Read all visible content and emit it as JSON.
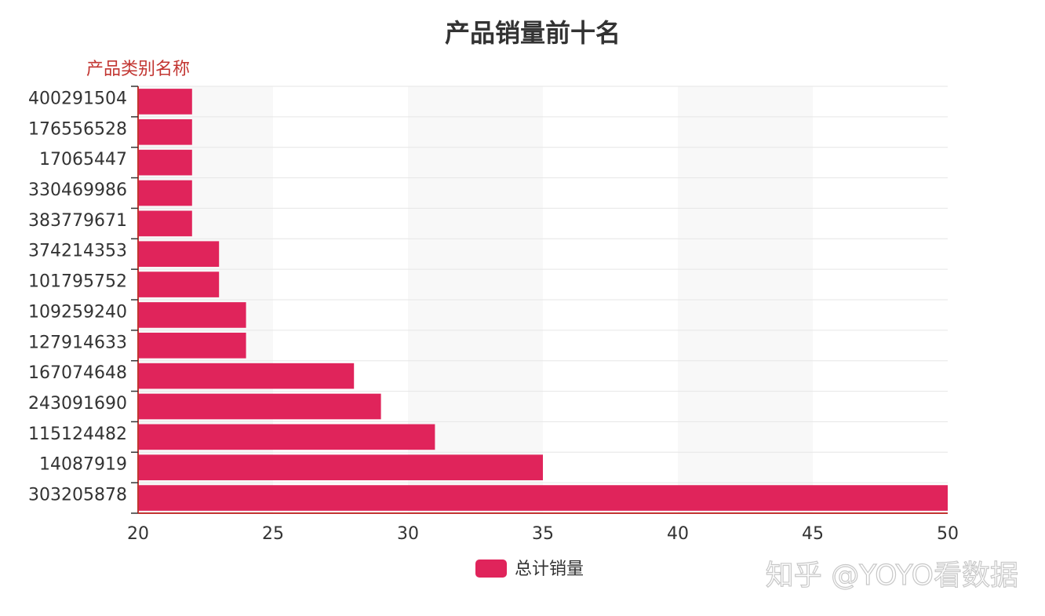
{
  "chart_data": {
    "type": "bar",
    "orientation": "horizontal",
    "title": "产品销量前十名",
    "ylabel": "产品类别名称",
    "xlabel": "",
    "categories": [
      "303205878",
      "14087919",
      "115124482",
      "243091690",
      "167074648",
      "127914633",
      "109259240",
      "101795752",
      "374214353",
      "383779671",
      "330469986",
      "17065447",
      "176556528",
      "400291504"
    ],
    "series": [
      {
        "name": "总计销量",
        "color": "#e0245b",
        "values": [
          50,
          35,
          31,
          29,
          28,
          24,
          24,
          23,
          23,
          22,
          22,
          22,
          22,
          22
        ]
      }
    ],
    "xlim": [
      20,
      50
    ],
    "xticks": [
      "20",
      "25",
      "30",
      "35",
      "40",
      "45",
      "50"
    ],
    "grid": true,
    "alternating_bands": true,
    "legend_position": "bottom-center",
    "axis_color": "#c23531",
    "text_color": "#333333"
  },
  "watermark": {
    "text": "知乎 @YOYO看数据"
  }
}
